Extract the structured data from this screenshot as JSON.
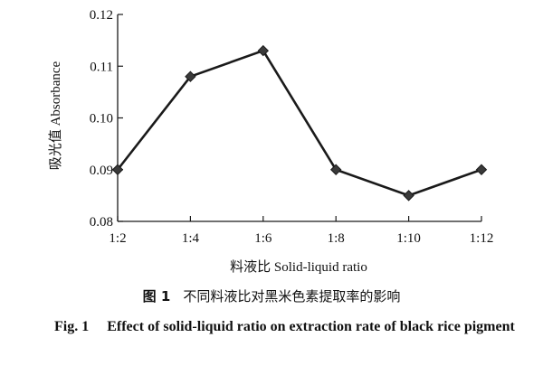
{
  "chart_data": {
    "type": "line",
    "categories": [
      "1:2",
      "1:4",
      "1:6",
      "1:8",
      "1:10",
      "1:12"
    ],
    "series": [
      {
        "values": [
          0.09,
          0.108,
          0.113,
          0.09,
          0.085,
          0.09
        ]
      }
    ],
    "ylim": [
      0.08,
      0.12
    ],
    "yticks": [
      "0.08",
      "0.09",
      "0.10",
      "0.11",
      "0.12"
    ],
    "xlabel": "料液比 Solid-liquid ratio",
    "ylabel": "吸光值 Absorbance",
    "grid": false,
    "marker": "diamond",
    "line_color": "#1a1a1a"
  },
  "caption": {
    "cn_number": "图 1",
    "cn_text": "不同料液比对黑米色素提取率的影响",
    "en_number": "Fig. 1",
    "en_text": "Effect of solid-liquid ratio on extraction rate of black rice pigment"
  }
}
